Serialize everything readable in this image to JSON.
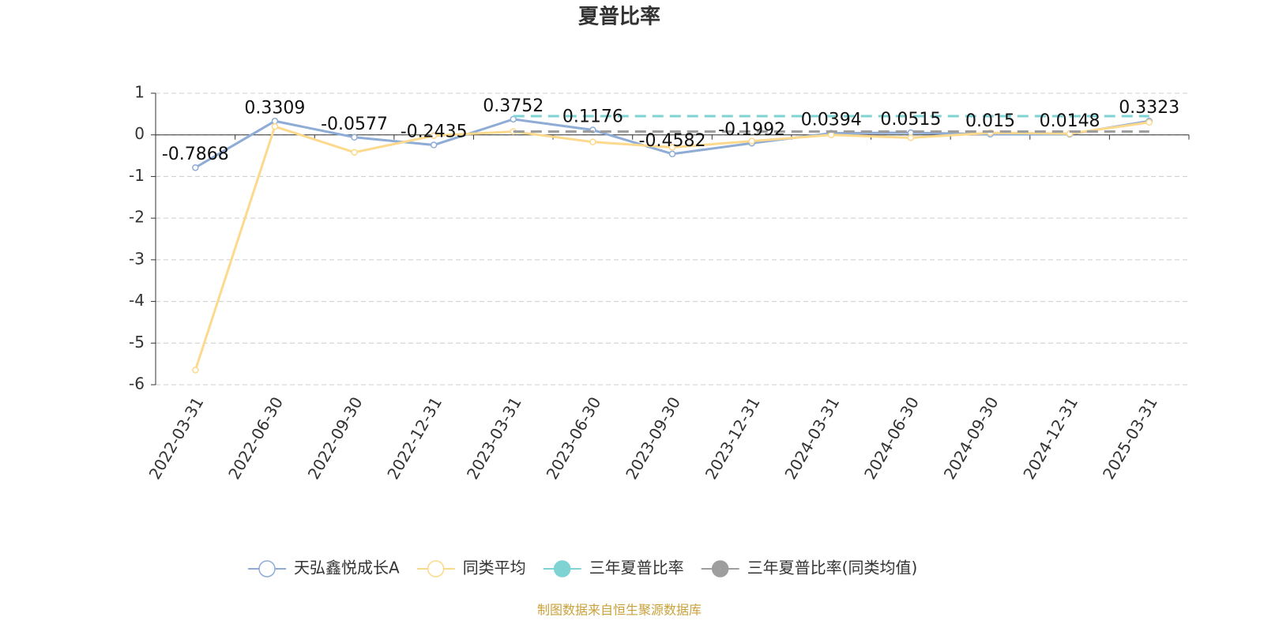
{
  "chart_data": {
    "type": "line",
    "title": "夏普比率",
    "categories": [
      "2022-03-31",
      "2022-06-30",
      "2022-09-30",
      "2022-12-31",
      "2023-03-31",
      "2023-06-30",
      "2023-09-30",
      "2023-12-31",
      "2024-03-31",
      "2024-06-30",
      "2024-09-30",
      "2024-12-31",
      "2025-03-31"
    ],
    "series": [
      {
        "name": "天弘鑫悦成长A",
        "color": "#8eacd6",
        "symbol": "hollow",
        "labels": true,
        "values": [
          -0.7868,
          0.3309,
          -0.0577,
          -0.2435,
          0.3752,
          0.1176,
          -0.4582,
          -0.1992,
          0.0394,
          0.0515,
          0.015,
          0.0148,
          0.3323
        ]
      },
      {
        "name": "同类平均",
        "color": "#fcd98c",
        "symbol": "hollow",
        "labels": false,
        "values": [
          -5.65,
          0.2,
          -0.42,
          -0.02,
          0.08,
          -0.17,
          -0.3,
          -0.15,
          0.0,
          -0.07,
          0.05,
          0.03,
          0.3
        ]
      },
      {
        "name": "三年夏普比率",
        "color": "#7fd3d3",
        "symbol": "filled",
        "dashed": true,
        "labels": false,
        "values": [
          null,
          null,
          null,
          null,
          0.45,
          0.45,
          0.45,
          0.45,
          0.45,
          0.45,
          0.45,
          0.45,
          0.45
        ]
      },
      {
        "name": "三年夏普比率(同类均值)",
        "color": "#9e9e9e",
        "symbol": "filled",
        "dashed": true,
        "labels": false,
        "values": [
          null,
          null,
          null,
          null,
          0.08,
          0.08,
          0.08,
          0.08,
          0.08,
          0.08,
          0.08,
          0.08,
          0.08
        ]
      }
    ],
    "ylim": [
      -6,
      1
    ],
    "yticks": [
      1,
      0,
      -1,
      -2,
      -3,
      -4,
      -5,
      -6
    ],
    "grid": true,
    "source": "制图数据来自恒生聚源数据库"
  }
}
